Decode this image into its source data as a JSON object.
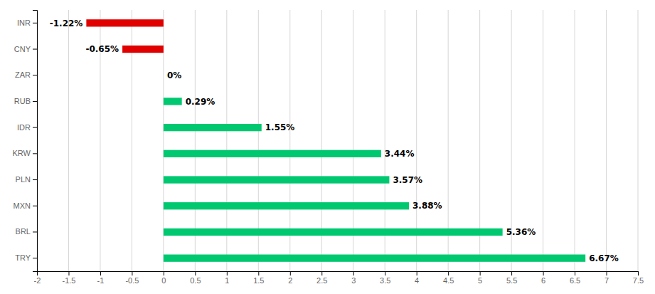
{
  "chart_data": {
    "type": "bar",
    "orientation": "horizontal",
    "categories": [
      "INR",
      "CNY",
      "ZAR",
      "RUB",
      "IDR",
      "KRW",
      "PLN",
      "MXN",
      "BRL",
      "TRY"
    ],
    "values": [
      -1.22,
      -0.65,
      0.0,
      0.29,
      1.55,
      3.44,
      3.57,
      3.88,
      5.36,
      6.67
    ],
    "value_labels": [
      "-1.22%",
      "-0.65%",
      "0%",
      "0.29%",
      "1.55%",
      "3.44%",
      "3.57%",
      "3.88%",
      "5.36%",
      "6.67%"
    ],
    "colors": [
      "#E00000",
      "#E00000",
      "#00C870",
      "#00C870",
      "#00C870",
      "#00C870",
      "#00C870",
      "#00C870",
      "#00C870",
      "#00C870"
    ],
    "xlim": [
      -2,
      7.5
    ],
    "xticks": [
      -2,
      -1.5,
      -1,
      -0.5,
      0,
      0.5,
      1,
      1.5,
      2,
      2.5,
      3,
      3.5,
      4,
      4.5,
      5,
      5.5,
      6,
      6.5,
      7,
      7.5
    ],
    "grid": true,
    "data_labels": true
  }
}
